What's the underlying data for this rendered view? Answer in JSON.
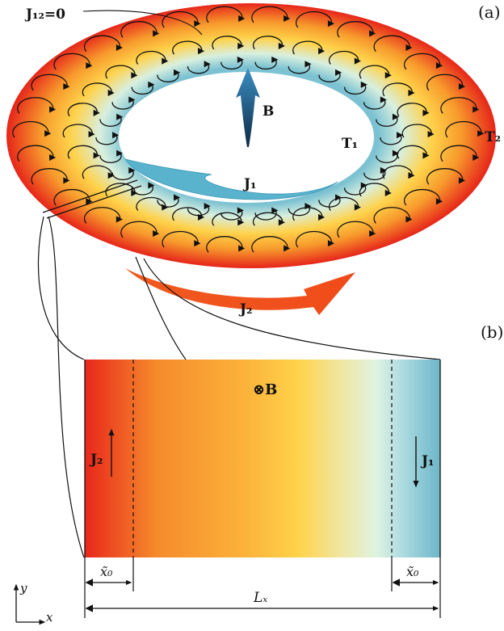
{
  "panel_a": {
    "label": "(a)",
    "j12_label": "J₁₂=0",
    "b_label": "B",
    "t1_label": "T₁",
    "t2_label": "T₂",
    "j1_label": "J₁",
    "j2_label": "J₂"
  },
  "panel_b": {
    "label": "(b)",
    "b_label": "⊗B",
    "j2_label": "J₂",
    "j1_label": "J₁",
    "x0_left": "x̃₀",
    "x0_right": "x̃₀",
    "lx_label": "Lₓ",
    "axis_y": "y",
    "axis_x": "x"
  },
  "colors": {
    "hot": "#e8271b",
    "mid": "#f7a431",
    "warm": "#ffd34a",
    "pale": "#d9f2dc",
    "cold": "#6fb9cc",
    "arrow_b": "#1b4f7a"
  }
}
